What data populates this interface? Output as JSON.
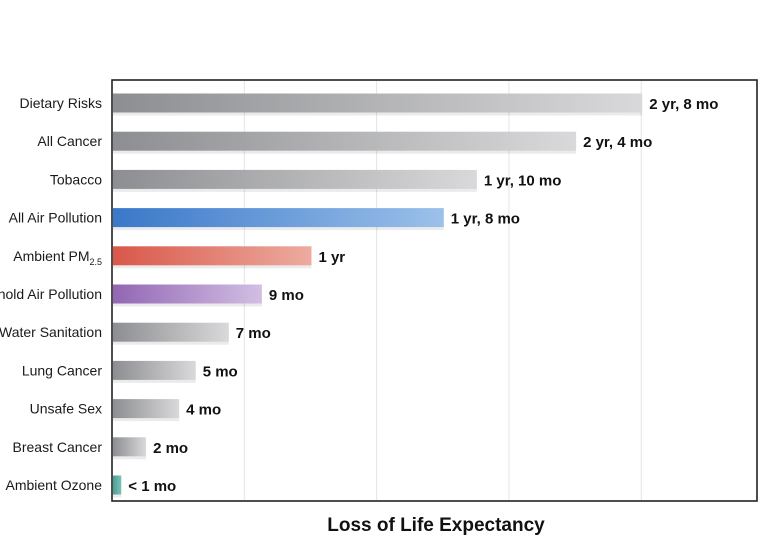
{
  "chart_data": {
    "type": "bar",
    "orientation": "horizontal",
    "title": "",
    "xlabel": "Loss of Life Expectancy",
    "ylabel": "",
    "xlim_months": [
      0,
      39
    ],
    "grid": true,
    "categories": [
      "Dietary Risks",
      "All Cancer",
      "Tobacco",
      "All Air Pollution",
      "Ambient PM",
      "Household Air Pollution",
      "Water Sanitation",
      "Lung Cancer",
      "Unsafe Sex",
      "Breast Cancer",
      "Ambient Ozone"
    ],
    "category_subscripts": [
      "",
      "",
      "",
      "",
      "2.5",
      "",
      "",
      "",
      "",
      "",
      ""
    ],
    "values_months": [
      32,
      28,
      22,
      20,
      12,
      9,
      7,
      5,
      4,
      2,
      0.5
    ],
    "value_labels": [
      "2 yr, 8 mo",
      "2 yr, 4 mo",
      "1 yr, 10 mo",
      "1 yr, 8 mo",
      "1 yr",
      "9 mo",
      "7 mo",
      "5 mo",
      "4 mo",
      "2 mo",
      "< 1 mo"
    ],
    "bar_colors": [
      [
        "#8d8e91",
        "#d9d9db"
      ],
      [
        "#8d8e91",
        "#d9d9db"
      ],
      [
        "#8d8e91",
        "#d9d9db"
      ],
      [
        "#3a78c9",
        "#9cc1ea"
      ],
      [
        "#d9584a",
        "#ecab9f"
      ],
      [
        "#9266b3",
        "#d2bfe3"
      ],
      [
        "#8d8e91",
        "#d9d9db"
      ],
      [
        "#8d8e91",
        "#d9d9db"
      ],
      [
        "#8d8e91",
        "#d9d9db"
      ],
      [
        "#8d8e91",
        "#d9d9db"
      ],
      [
        "#4a9e94",
        "#7cc2b9"
      ]
    ]
  }
}
